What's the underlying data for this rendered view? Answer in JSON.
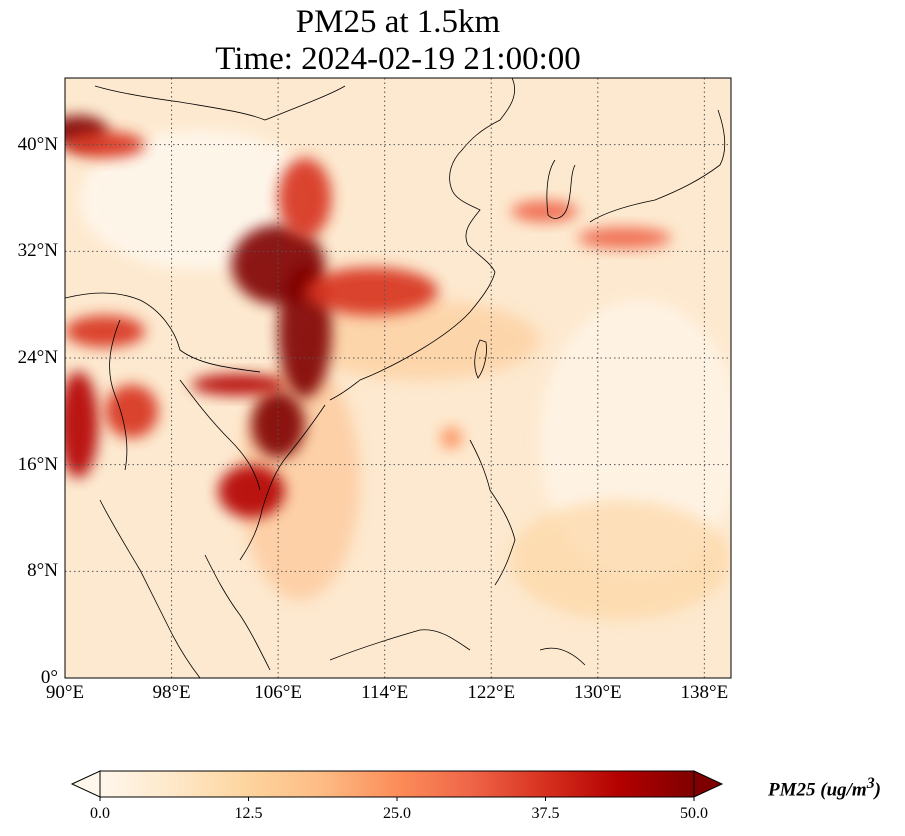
{
  "title": {
    "line1": "PM25 at 1.5km",
    "line2": "Time: 2024-02-19 21:00:00"
  },
  "map": {
    "projection": "PlateCarree",
    "lon_range": [
      90,
      140
    ],
    "lat_range": [
      0,
      45
    ],
    "gridlines": "dotted",
    "coastlines": true,
    "x_ticks": [
      {
        "lon": 90,
        "label": "90°E"
      },
      {
        "lon": 98,
        "label": "98°E"
      },
      {
        "lon": 106,
        "label": "106°E"
      },
      {
        "lon": 114,
        "label": "114°E"
      },
      {
        "lon": 122,
        "label": "122°E"
      },
      {
        "lon": 130,
        "label": "130°E"
      },
      {
        "lon": 138,
        "label": "138°E"
      }
    ],
    "y_ticks": [
      {
        "lat": 40,
        "label": "40°N"
      },
      {
        "lat": 32,
        "label": "32°N"
      },
      {
        "lat": 24,
        "label": "24°N"
      },
      {
        "lat": 16,
        "label": "16°N"
      },
      {
        "lat": 8,
        "label": "8°N"
      },
      {
        "lat": 0,
        "label": "0°"
      }
    ],
    "high_pm25_regions": [
      {
        "lon": 91,
        "lat": 41,
        "rx": 2.2,
        "ry": 1.2,
        "level": 50
      },
      {
        "lon": 93,
        "lat": 40,
        "rx": 3.0,
        "ry": 1.0,
        "level": 35
      },
      {
        "lon": 106,
        "lat": 31,
        "rx": 3.5,
        "ry": 3.0,
        "level": 50
      },
      {
        "lon": 108,
        "lat": 36,
        "rx": 2.0,
        "ry": 3.0,
        "level": 40
      },
      {
        "lon": 108,
        "lat": 26,
        "rx": 2.0,
        "ry": 5.0,
        "level": 50
      },
      {
        "lon": 113,
        "lat": 29,
        "rx": 5.0,
        "ry": 1.8,
        "level": 38
      },
      {
        "lon": 106,
        "lat": 19,
        "rx": 2.0,
        "ry": 2.5,
        "level": 48
      },
      {
        "lon": 104,
        "lat": 14,
        "rx": 2.5,
        "ry": 2.0,
        "level": 42
      },
      {
        "lon": 91,
        "lat": 19,
        "rx": 1.5,
        "ry": 4.0,
        "level": 45
      },
      {
        "lon": 95,
        "lat": 20,
        "rx": 2.0,
        "ry": 2.0,
        "level": 35
      },
      {
        "lon": 93,
        "lat": 26,
        "rx": 3.0,
        "ry": 1.2,
        "level": 40
      },
      {
        "lon": 103,
        "lat": 22,
        "rx": 3.5,
        "ry": 0.8,
        "level": 45
      },
      {
        "lon": 126,
        "lat": 35,
        "rx": 2.5,
        "ry": 0.8,
        "level": 32
      },
      {
        "lon": 132,
        "lat": 33,
        "rx": 3.5,
        "ry": 0.8,
        "level": 32
      },
      {
        "lon": 119,
        "lat": 18,
        "rx": 0.8,
        "ry": 0.8,
        "level": 28
      }
    ]
  },
  "colorbar": {
    "colormap": "OrRd",
    "min": 0.0,
    "max": 50.0,
    "extend": "both",
    "colors": [
      "#fff7ec",
      "#fee8c8",
      "#fdd49e",
      "#fdbb84",
      "#fc8d59",
      "#ef6548",
      "#d7301f",
      "#b30000",
      "#7f0000"
    ],
    "ticks": [
      "0.0",
      "12.5",
      "25.0",
      "37.5",
      "50.0"
    ],
    "label_var": "PM25 (ug/m",
    "label_sup": "3",
    "label_end": ")"
  }
}
